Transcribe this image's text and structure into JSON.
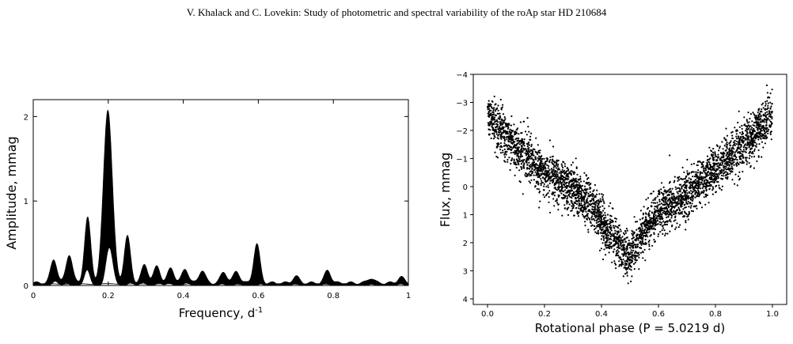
{
  "header": {
    "text": "V. Khalack and C. Lovekin: Study of photometric and spectral variability of the roAp star HD 210684"
  },
  "chart_data": [
    {
      "type": "line",
      "style": "filled periodogram",
      "xlabel_main": "Frequency, d",
      "xlabel_sup": "-1",
      "ylabel": "Amplitude, mmag",
      "xlim": [
        0,
        1
      ],
      "ylim": [
        0,
        2.2
      ],
      "xticks": [
        0,
        0.2,
        0.4,
        0.6,
        0.8,
        1
      ],
      "xtick_labels": [
        "0",
        "0.2",
        "0.4",
        "0.6",
        "0.8",
        "1"
      ],
      "yticks": [
        0,
        1,
        2
      ],
      "ytick_labels": [
        "0",
        "1",
        "2"
      ],
      "peaks": [
        {
          "f": 0.199,
          "a": 2.06
        },
        {
          "f": 0.145,
          "a": 0.77
        },
        {
          "f": 0.251,
          "a": 0.55
        },
        {
          "f": 0.596,
          "a": 0.46
        },
        {
          "f": 0.096,
          "a": 0.34
        },
        {
          "f": 0.055,
          "a": 0.28
        },
        {
          "f": 0.297,
          "a": 0.22
        },
        {
          "f": 0.33,
          "a": 0.2
        },
        {
          "f": 0.367,
          "a": 0.18
        },
        {
          "f": 0.405,
          "a": 0.17
        },
        {
          "f": 0.45,
          "a": 0.15
        },
        {
          "f": 0.508,
          "a": 0.13
        },
        {
          "f": 0.542,
          "a": 0.14
        },
        {
          "f": 0.785,
          "a": 0.15
        },
        {
          "f": 0.7,
          "a": 0.08
        },
        {
          "f": 0.9,
          "a": 0.06
        },
        {
          "f": 0.98,
          "a": 0.07
        }
      ],
      "grid": false
    },
    {
      "type": "scatter",
      "xlabel": "Rotational phase (P = 5.0219 d)",
      "ylabel": "Flux, mmag",
      "xlim": [
        -0.05,
        1.05
      ],
      "ylim": [
        4.2,
        -4
      ],
      "y_inverted": true,
      "xticks": [
        0,
        0.2,
        0.4,
        0.6,
        0.8,
        1
      ],
      "xtick_labels": [
        "0.0",
        "0.2",
        "0.4",
        "0.6",
        "0.8",
        "1.0"
      ],
      "yticks": [
        -4,
        -3,
        -2,
        -1,
        0,
        1,
        2,
        3,
        4
      ],
      "ytick_labels": [
        "−4",
        "−3",
        "−2",
        "−1",
        "0",
        "1",
        "2",
        "3",
        "4"
      ],
      "trend": [
        {
          "x": 0.0,
          "y": -2.6
        },
        {
          "x": 0.05,
          "y": -2.0
        },
        {
          "x": 0.1,
          "y": -1.4
        },
        {
          "x": 0.2,
          "y": -0.5
        },
        {
          "x": 0.3,
          "y": 0.1
        },
        {
          "x": 0.35,
          "y": 0.5
        },
        {
          "x": 0.4,
          "y": 1.2
        },
        {
          "x": 0.45,
          "y": 2.0
        },
        {
          "x": 0.5,
          "y": 2.5
        },
        {
          "x": 0.55,
          "y": 1.6
        },
        {
          "x": 0.6,
          "y": 0.9
        },
        {
          "x": 0.7,
          "y": 0.3
        },
        {
          "x": 0.8,
          "y": -0.6
        },
        {
          "x": 0.9,
          "y": -1.5
        },
        {
          "x": 1.0,
          "y": -2.6
        }
      ],
      "n_points": 4000,
      "scatter_sigma": 0.4,
      "grid": false
    }
  ]
}
